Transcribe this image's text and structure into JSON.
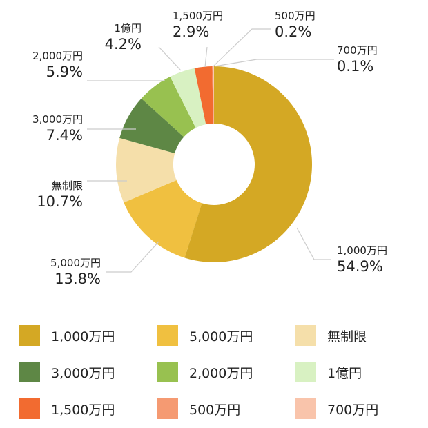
{
  "chart_data": {
    "type": "pie",
    "donut": true,
    "title": "",
    "legend_position": "bottom",
    "slices": [
      {
        "name": "1,000万円",
        "value": 54.9,
        "label": "54.9%",
        "color": "#d4a824"
      },
      {
        "name": "5,000万円",
        "value": 13.8,
        "label": "13.8%",
        "color": "#f0c040"
      },
      {
        "name": "無制限",
        "value": 10.7,
        "label": "10.7%",
        "color": "#f5dfaa"
      },
      {
        "name": "3,000万円",
        "value": 7.4,
        "label": "7.4%",
        "color": "#5e8745"
      },
      {
        "name": "2,000万円",
        "value": 5.9,
        "label": "5.9%",
        "color": "#98c150"
      },
      {
        "name": "1億円",
        "value": 4.2,
        "label": "4.2%",
        "color": "#d8f1c2"
      },
      {
        "name": "1,500万円",
        "value": 2.9,
        "label": "2.9%",
        "color": "#f26b30"
      },
      {
        "name": "500万円",
        "value": 0.2,
        "label": "0.2%",
        "color": "#f59a72"
      },
      {
        "name": "700万円",
        "value": 0.1,
        "label": "0.1%",
        "color": "#f9c4ab"
      }
    ]
  }
}
